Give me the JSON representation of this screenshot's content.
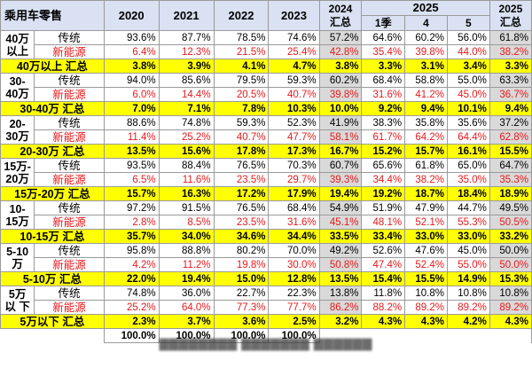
{
  "header": {
    "corner": "乘用车零售",
    "years": [
      "2020",
      "2021",
      "2022",
      "2023"
    ],
    "y2024": "2024 汇总",
    "y2025": "2025",
    "months": [
      "1季",
      "4",
      "5"
    ],
    "y2025sum": "2025 汇总"
  },
  "groups": [
    {
      "label": "40万 以上",
      "trad_label": "传统",
      "nev_label": "新能源",
      "trad": [
        "93.6%",
        "87.7%",
        "78.5%",
        "74.6%",
        "57.2%",
        "64.6%",
        "60.2%",
        "56.0%",
        "61.8%"
      ],
      "nev": [
        "6.4%",
        "12.3%",
        "21.5%",
        "25.4%",
        "42.8%",
        "35.4%",
        "39.8%",
        "44.0%",
        "38.2%"
      ],
      "sum_label": "40万以上 汇总",
      "sum": [
        "3.8%",
        "3.9%",
        "4.1%",
        "4.7%",
        "3.8%",
        "3.3%",
        "3.1%",
        "3.4%",
        "3.3%"
      ]
    },
    {
      "label": "30- 40万",
      "trad_label": "传统",
      "nev_label": "新能源",
      "trad": [
        "94.0%",
        "85.6%",
        "79.5%",
        "59.3%",
        "60.2%",
        "68.4%",
        "58.8%",
        "55.0%",
        "63.3%"
      ],
      "nev": [
        "6.0%",
        "14.4%",
        "20.5%",
        "40.7%",
        "39.8%",
        "31.6%",
        "41.2%",
        "45.0%",
        "36.7%"
      ],
      "sum_label": "30-40万 汇总",
      "sum": [
        "7.0%",
        "7.1%",
        "7.8%",
        "10.3%",
        "10.0%",
        "9.2%",
        "9.4%",
        "10.1%",
        "9.4%"
      ]
    },
    {
      "label": "20- 30万",
      "trad_label": "传统",
      "nev_label": "新能源",
      "trad": [
        "88.6%",
        "74.8%",
        "59.3%",
        "52.3%",
        "41.9%",
        "38.3%",
        "35.8%",
        "35.6%",
        "37.2%"
      ],
      "nev": [
        "11.4%",
        "25.2%",
        "40.7%",
        "47.7%",
        "58.1%",
        "61.7%",
        "64.2%",
        "64.4%",
        "62.8%"
      ],
      "sum_label": "20-30万 汇总",
      "sum": [
        "13.5%",
        "15.6%",
        "17.8%",
        "17.3%",
        "16.7%",
        "15.2%",
        "15.7%",
        "16.1%",
        "15.5%"
      ]
    },
    {
      "label": "15万- 20万",
      "trad_label": "传统",
      "nev_label": "新能源",
      "trad": [
        "93.5%",
        "88.4%",
        "76.5%",
        "70.3%",
        "60.7%",
        "65.6%",
        "61.8%",
        "65.0%",
        "64.7%"
      ],
      "nev": [
        "6.5%",
        "11.6%",
        "23.5%",
        "29.7%",
        "39.3%",
        "34.4%",
        "38.2%",
        "35.0%",
        "35.3%"
      ],
      "sum_label": "15万-20万 汇总",
      "sum": [
        "15.7%",
        "16.3%",
        "17.2%",
        "17.9%",
        "19.4%",
        "19.2%",
        "18.7%",
        "18.4%",
        "18.9%"
      ]
    },
    {
      "label": "10- 15万",
      "trad_label": "传统",
      "nev_label": "新能源",
      "trad": [
        "97.2%",
        "91.5%",
        "76.5%",
        "68.4%",
        "54.9%",
        "51.9%",
        "47.9%",
        "44.7%",
        "49.5%"
      ],
      "nev": [
        "2.8%",
        "8.5%",
        "23.5%",
        "31.6%",
        "45.1%",
        "48.1%",
        "52.1%",
        "55.3%",
        "50.5%"
      ],
      "sum_label": "10-15万 汇总",
      "sum": [
        "35.7%",
        "34.0%",
        "34.6%",
        "34.4%",
        "33.5%",
        "33.4%",
        "33.0%",
        "33.0%",
        "33.2%"
      ]
    },
    {
      "label": "5-10 万",
      "trad_label": "传统",
      "nev_label": "新能源",
      "trad": [
        "95.8%",
        "88.8%",
        "80.2%",
        "70.0%",
        "49.2%",
        "52.6%",
        "47.6%",
        "45.0%",
        "50.0%"
      ],
      "nev": [
        "4.2%",
        "11.2%",
        "19.8%",
        "30.0%",
        "50.8%",
        "47.4%",
        "52.4%",
        "55.0%",
        "50.0%"
      ],
      "sum_label": "5-10万 汇总",
      "sum": [
        "22.0%",
        "19.4%",
        "15.0%",
        "12.8%",
        "13.5%",
        "15.4%",
        "15.5%",
        "14.9%",
        "15.3%"
      ]
    },
    {
      "label": "5万以 下",
      "trad_label": "传统",
      "nev_label": "新能源",
      "trad": [
        "74.8%",
        "36.0%",
        "22.7%",
        "22.3%",
        "13.8%",
        "11.8%",
        "10.8%",
        "10.8%",
        "10.8%"
      ],
      "nev": [
        "25.2%",
        "64.0%",
        "77.3%",
        "77.7%",
        "86.2%",
        "88.2%",
        "89.2%",
        "89.2%",
        "89.2%"
      ],
      "sum_label": "5万以下 汇总",
      "sum": [
        "2.3%",
        "3.7%",
        "3.6%",
        "2.5%",
        "3.2%",
        "4.3%",
        "4.3%",
        "4.2%",
        "4.3%"
      ]
    }
  ],
  "total": {
    "values": [
      "100.0%",
      "100.0%",
      "100.0%",
      "100.0%"
    ]
  }
}
